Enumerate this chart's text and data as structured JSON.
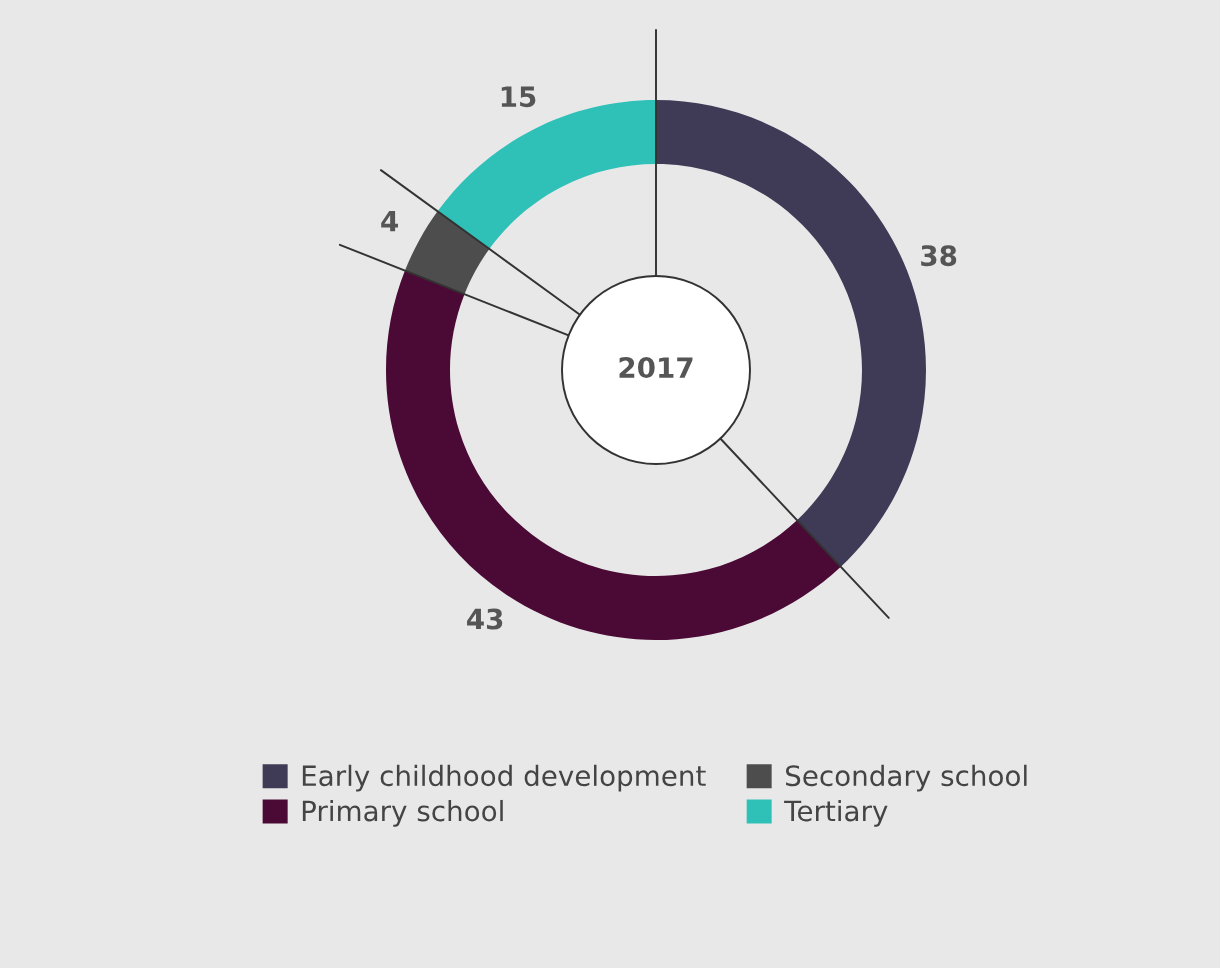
{
  "chart_data": {
    "type": "donut",
    "categories": [
      "Early childhood development",
      "Primary school",
      "Secondary school",
      "Tertiary"
    ],
    "values": [
      38,
      43,
      4,
      15
    ],
    "colors": [
      "#3f3a56",
      "#4a0a35",
      "#4d4d4d",
      "#2fc0b8"
    ],
    "data_labels": true,
    "annotations": [
      "2017"
    ],
    "legend": "bottom"
  }
}
